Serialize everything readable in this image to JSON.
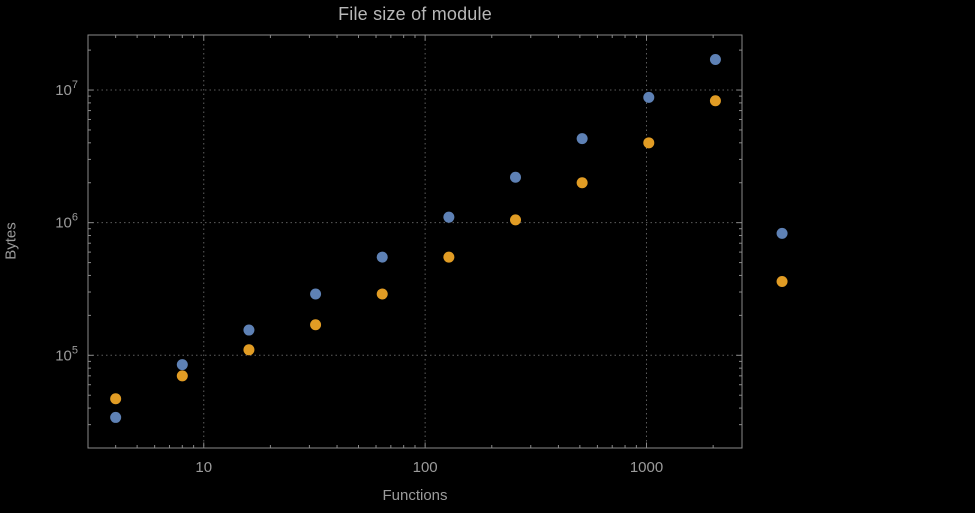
{
  "colors": {
    "background": "#000000",
    "frame": "#8a8a8a",
    "grid": "#5d5d5d",
    "tick_text": "#9b9b9b",
    "title_text": "#b8b8b8",
    "series_blue": "#5e81b5",
    "series_orange": "#e19c24"
  },
  "chart_data": {
    "type": "scatter",
    "title": "File size of module",
    "xlabel": "Functions",
    "ylabel": "Bytes",
    "x_scale": "log",
    "y_scale": "log",
    "xlim": [
      3,
      2700
    ],
    "ylim": [
      20000,
      26000000
    ],
    "x_ticks": [
      10,
      100,
      1000
    ],
    "x_tick_labels": [
      "10",
      "100",
      "1000"
    ],
    "y_ticks": [
      100000,
      1000000,
      10000000
    ],
    "y_tick_base": "10",
    "y_tick_exponents": [
      "5",
      "6",
      "7"
    ],
    "grid": true,
    "grid_style": "dotted",
    "legend": "none",
    "frame": true,
    "series": [
      {
        "name": "blue-series",
        "color": "#5e81b5",
        "points": [
          [
            4,
            34000
          ],
          [
            8,
            85000
          ],
          [
            16,
            155000
          ],
          [
            32,
            290000
          ],
          [
            64,
            550000
          ],
          [
            128,
            1100000
          ],
          [
            256,
            2200000
          ],
          [
            512,
            4300000
          ],
          [
            1024,
            8800000
          ],
          [
            2048,
            17000000
          ],
          [
            4096,
            830000
          ]
        ]
      },
      {
        "name": "orange-series",
        "color": "#e19c24",
        "points": [
          [
            4,
            47000
          ],
          [
            8,
            70000
          ],
          [
            16,
            110000
          ],
          [
            32,
            170000
          ],
          [
            64,
            290000
          ],
          [
            128,
            550000
          ],
          [
            256,
            1050000
          ],
          [
            512,
            2000000
          ],
          [
            1024,
            4000000
          ],
          [
            2048,
            8300000
          ],
          [
            4096,
            360000
          ]
        ]
      }
    ]
  }
}
